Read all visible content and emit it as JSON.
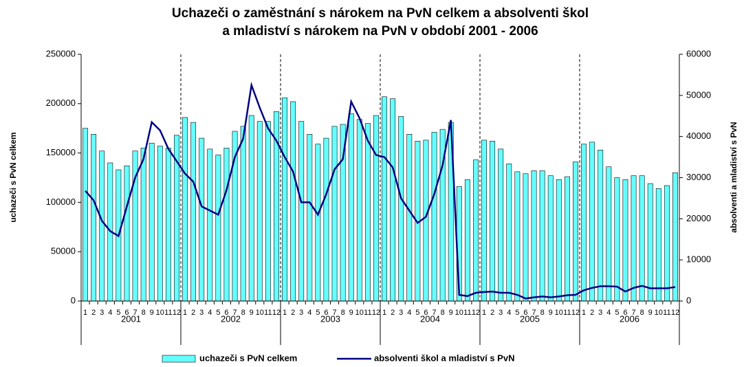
{
  "chart_data": {
    "type": "bar_line",
    "title": [
      "Uchazeči o zaměstnání s nárokem na PvN celkem a absolventi škol",
      "a mladiství s nárokem na PvN v období 2001 - 2006"
    ],
    "y_label": "uchazeči s PvN celkem",
    "y2_label": "absolventi a mladiství s PvN",
    "categories": [
      "1",
      "2",
      "3",
      "4",
      "5",
      "6",
      "7",
      "8",
      "9",
      "10",
      "11",
      "12",
      "1",
      "2",
      "3",
      "4",
      "5",
      "6",
      "7",
      "8",
      "9",
      "10",
      "11",
      "12",
      "1",
      "2",
      "3",
      "4",
      "5",
      "6",
      "7",
      "8",
      "9",
      "10",
      "11",
      "12",
      "1",
      "2",
      "3",
      "4",
      "5",
      "6",
      "7",
      "8",
      "9",
      "10",
      "11",
      "12",
      "1",
      "2",
      "3",
      "4",
      "5",
      "6",
      "7",
      "8",
      "9",
      "10",
      "11",
      "12",
      "1",
      "2",
      "3",
      "4",
      "5",
      "6",
      "7",
      "8",
      "9",
      "10",
      "11",
      "12"
    ],
    "groups": [
      "2001",
      "2002",
      "2003",
      "2004",
      "2005",
      "2006"
    ],
    "ylim": [
      0,
      250000
    ],
    "yticks": [
      0,
      50000,
      100000,
      150000,
      200000,
      250000
    ],
    "y2lim": [
      0,
      60000
    ],
    "y2ticks": [
      0,
      10000,
      20000,
      30000,
      40000,
      50000,
      60000
    ],
    "series": [
      {
        "name": "uchazeči s PvN celkem",
        "type": "bar",
        "color": "#66ffff",
        "values": [
          175000,
          169000,
          152000,
          140000,
          133000,
          137000,
          152000,
          155000,
          160000,
          157000,
          155000,
          168000,
          186000,
          181000,
          165000,
          154000,
          148000,
          155000,
          172000,
          177000,
          188000,
          182000,
          182000,
          192000,
          206000,
          202000,
          182000,
          169000,
          159000,
          165000,
          177000,
          179000,
          190000,
          184000,
          180000,
          188000,
          207000,
          205000,
          187000,
          169000,
          162000,
          163000,
          171000,
          174000,
          181000,
          116000,
          123000,
          143000,
          163000,
          162000,
          154000,
          139000,
          131000,
          129000,
          132000,
          132000,
          127000,
          123000,
          126000,
          141000,
          159000,
          161000,
          153000,
          136000,
          125000,
          123000,
          127000,
          127000,
          119000,
          114000,
          117000,
          130000
        ]
      },
      {
        "name": "absolventi škol a mladiství s PvN",
        "type": "line",
        "axis": "y2",
        "color": "#000080",
        "values": [
          26800,
          24500,
          19500,
          17000,
          15800,
          23000,
          30000,
          34500,
          43500,
          41500,
          37000,
          34000,
          31000,
          29000,
          23000,
          22000,
          21000,
          27000,
          35000,
          39500,
          52500,
          47000,
          42000,
          39000,
          35000,
          31500,
          24000,
          24000,
          21000,
          26000,
          32000,
          34500,
          48500,
          44500,
          39000,
          35500,
          35000,
          32500,
          25000,
          22000,
          19000,
          20500,
          26000,
          33000,
          44000,
          1500,
          1200,
          2000,
          2200,
          2300,
          2000,
          2000,
          1500,
          600,
          900,
          1100,
          900,
          1100,
          1400,
          1500,
          2600,
          3200,
          3600,
          3600,
          3500,
          2300,
          3200,
          3700,
          3100,
          3100,
          3100,
          3400
        ]
      }
    ]
  }
}
